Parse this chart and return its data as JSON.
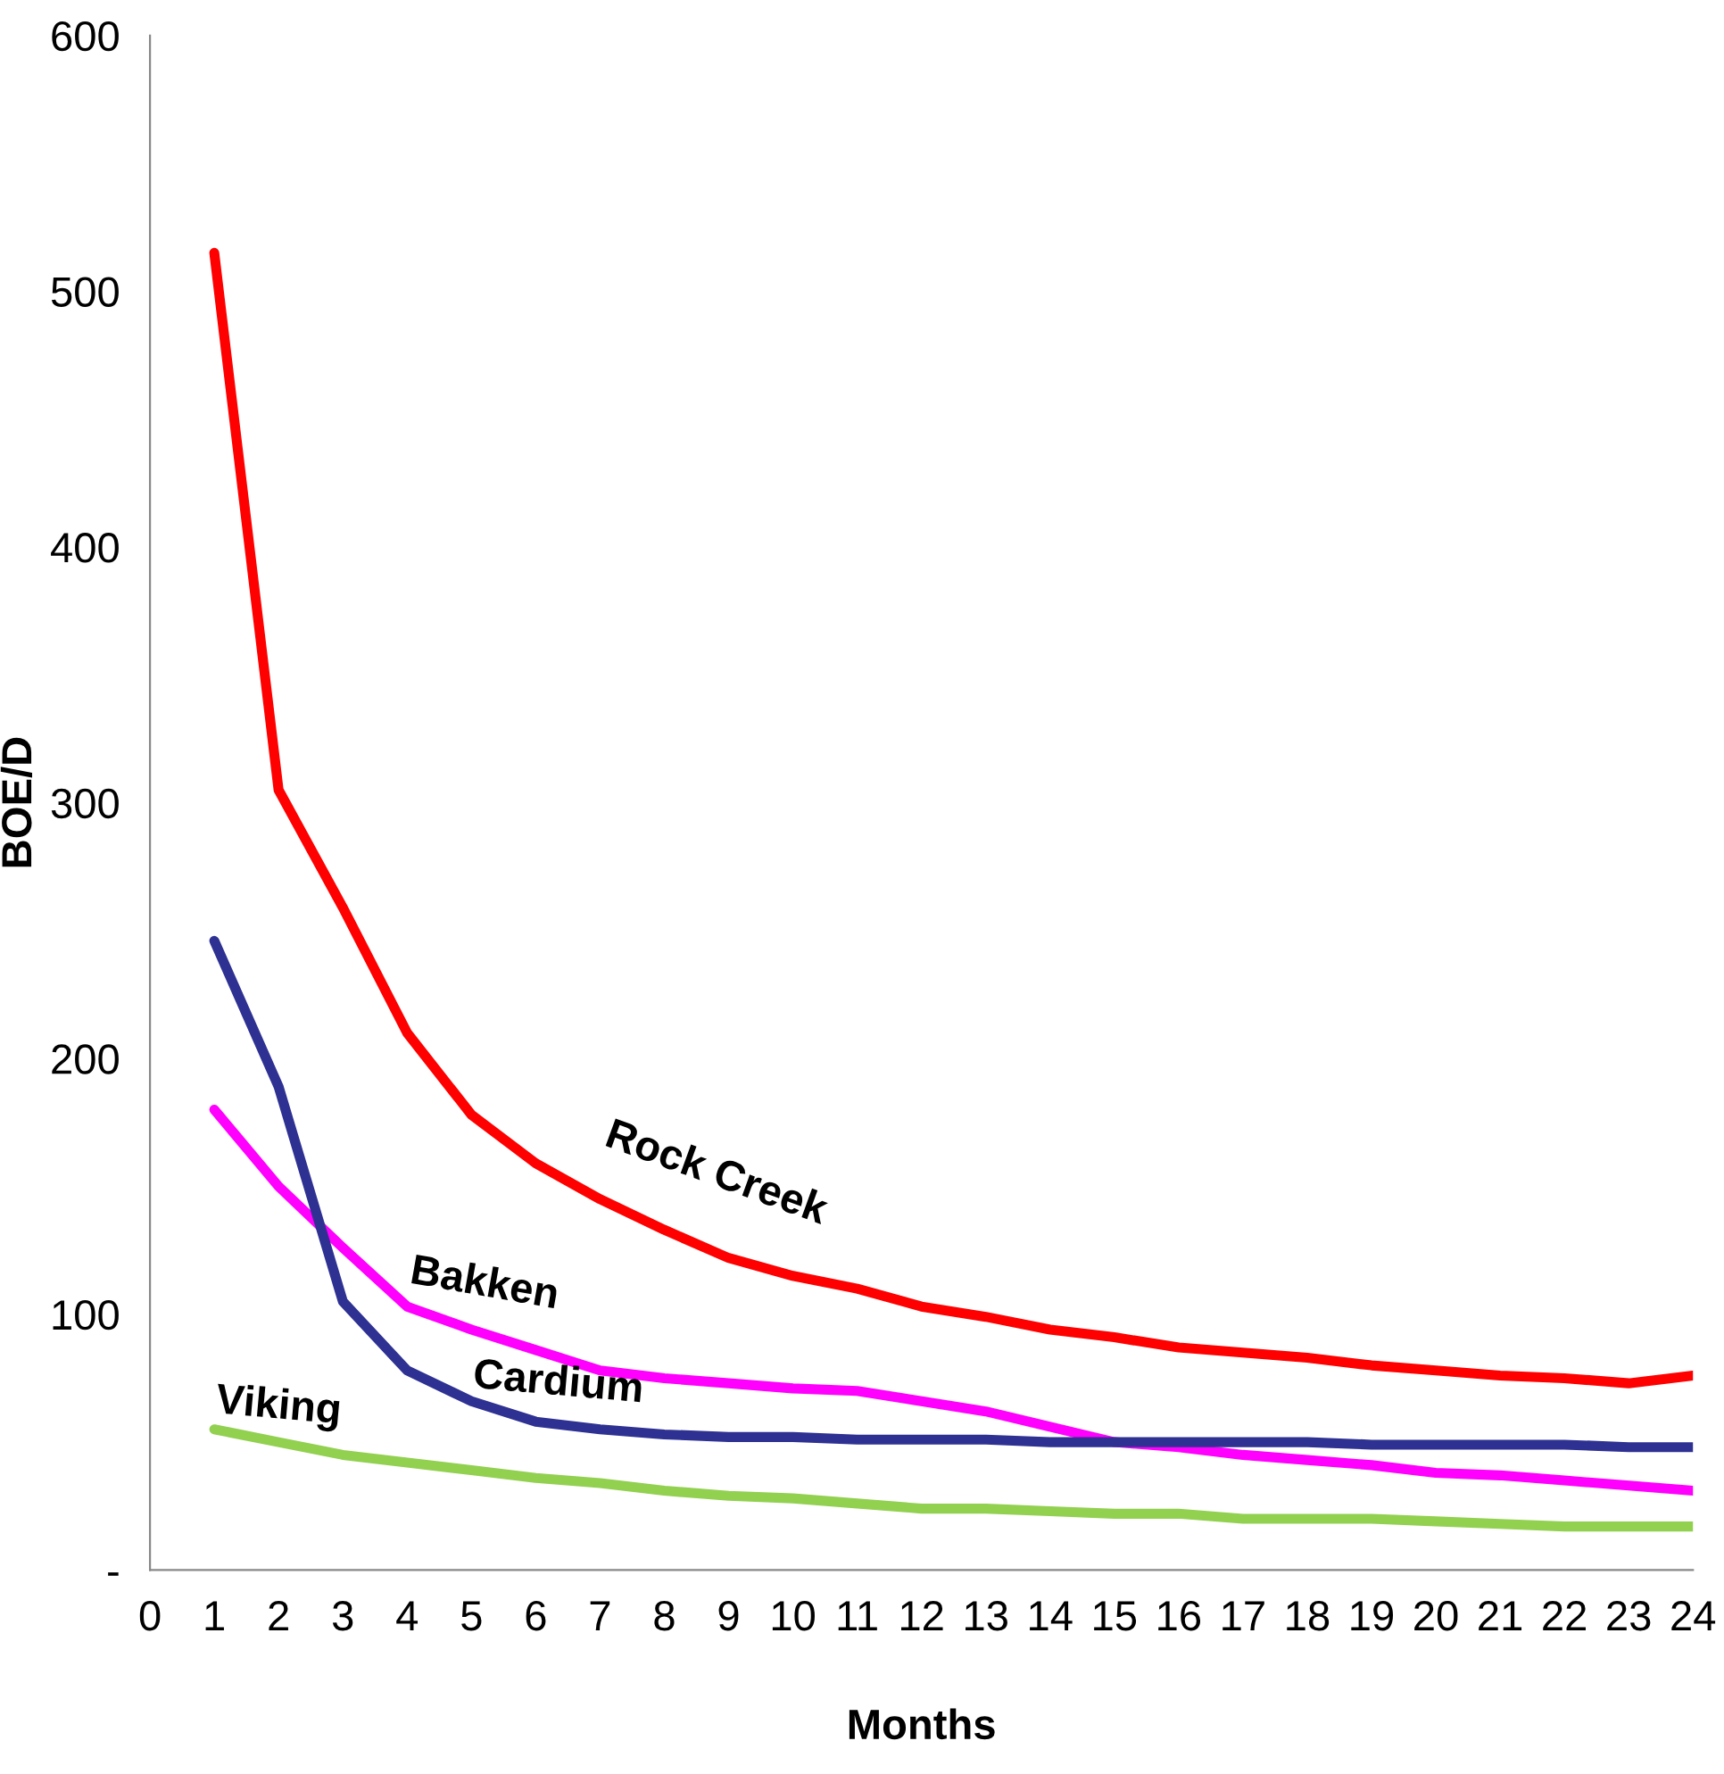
{
  "chart_data": {
    "type": "line",
    "xlabel": "Months",
    "ylabel": "BOE/D",
    "x": [
      1,
      2,
      3,
      4,
      5,
      6,
      7,
      8,
      9,
      10,
      11,
      12,
      13,
      14,
      15,
      16,
      17,
      18,
      19,
      20,
      21,
      22,
      23,
      24
    ],
    "series": [
      {
        "name": "Rock Creek",
        "color": "#ff0000",
        "values": [
          515,
          305,
          259,
          210,
          178,
          159,
          145,
          133,
          122,
          115,
          110,
          103,
          99,
          94,
          91,
          87,
          85,
          83,
          80,
          78,
          76,
          75,
          73,
          76
        ]
      },
      {
        "name": "Bakken",
        "color": "#ff00ff",
        "values": [
          180,
          150,
          126,
          103,
          94,
          86,
          78,
          75,
          73,
          71,
          70,
          66,
          62,
          56,
          50,
          48,
          45,
          43,
          41,
          38,
          37,
          35,
          33,
          31
        ]
      },
      {
        "name": "Cardium",
        "color": "#2e3192",
        "values": [
          246,
          189,
          105,
          78,
          66,
          58,
          55,
          53,
          52,
          52,
          51,
          51,
          51,
          50,
          50,
          50,
          50,
          50,
          49,
          49,
          49,
          49,
          48,
          48
        ]
      },
      {
        "name": "Viking",
        "color": "#92d050",
        "values": [
          55,
          50,
          45,
          42,
          39,
          36,
          34,
          31,
          29,
          28,
          26,
          24,
          24,
          23,
          22,
          22,
          20,
          20,
          20,
          19,
          18,
          17,
          17,
          17
        ]
      }
    ],
    "xlim": [
      0,
      24
    ],
    "xticks": [
      0,
      1,
      2,
      3,
      4,
      5,
      6,
      7,
      8,
      9,
      10,
      11,
      12,
      13,
      14,
      15,
      16,
      17,
      18,
      19,
      20,
      21,
      22,
      23,
      24
    ],
    "ylim": [
      0,
      600
    ],
    "yticks": [
      {
        "value": 0,
        "label": "-"
      },
      100,
      200,
      300,
      400,
      500,
      600
    ],
    "grid": false,
    "legend": false,
    "marker": "none",
    "line_style": "solid"
  }
}
